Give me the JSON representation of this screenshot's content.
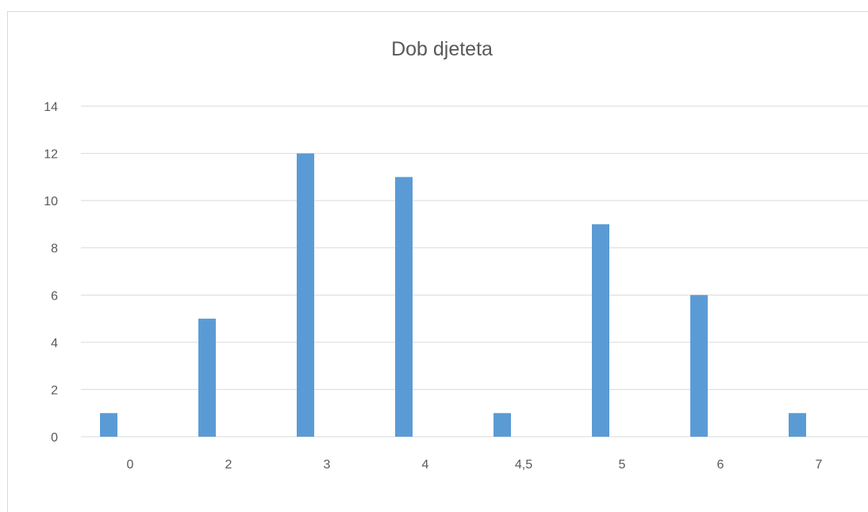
{
  "chart_data": {
    "type": "bar",
    "title": "Dob djeteta",
    "xlabel": "",
    "ylabel": "",
    "categories": [
      "0",
      "2",
      "3",
      "4",
      "4,5",
      "5",
      "6",
      "7"
    ],
    "values": [
      1,
      5,
      12,
      11,
      1,
      9,
      6,
      1
    ],
    "ylim": [
      0,
      14
    ],
    "yticks": [
      "0",
      "2",
      "4",
      "6",
      "8",
      "10",
      "12",
      "14"
    ],
    "grid": true,
    "legend": "none",
    "colors": {
      "bar": "#5b9bd5",
      "grid": "#d9d9d9",
      "text": "#595959"
    }
  }
}
